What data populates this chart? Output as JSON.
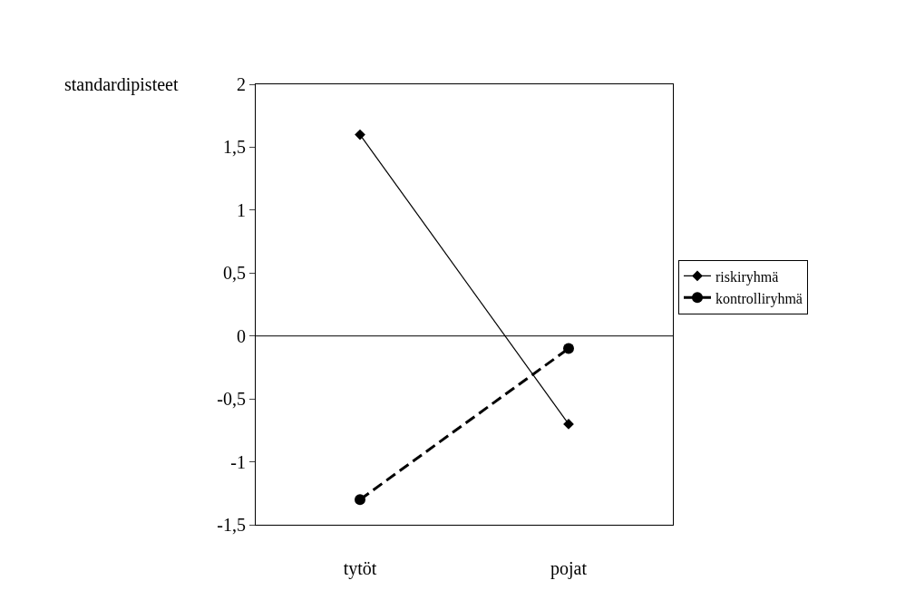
{
  "chart_data": {
    "type": "line",
    "ylabel": "standardipisteet",
    "categories": [
      "tytöt",
      "pojat"
    ],
    "series": [
      {
        "name": "riskiryhmä",
        "color": "#000000",
        "values": [
          1.6,
          -0.7
        ],
        "marker": "diamond",
        "line_style": "solid"
      },
      {
        "name": "kontrolliryhmä",
        "color": "#000000",
        "values": [
          -1.3,
          -0.1
        ],
        "marker": "circle",
        "line_style": "dashed"
      }
    ],
    "ylim": [
      -1.5,
      2
    ],
    "yticks": [
      {
        "value": -1.5,
        "label": "-1,5"
      },
      -1,
      {
        "value": -0.5,
        "label": "-0,5"
      },
      0,
      {
        "value": 0.5,
        "label": "0,5"
      },
      1,
      {
        "value": 1.5,
        "label": "1,5"
      },
      2
    ],
    "ref_lines": [
      {
        "axis": "y",
        "value": 0,
        "color": "#000000"
      }
    ],
    "legend": "right"
  }
}
